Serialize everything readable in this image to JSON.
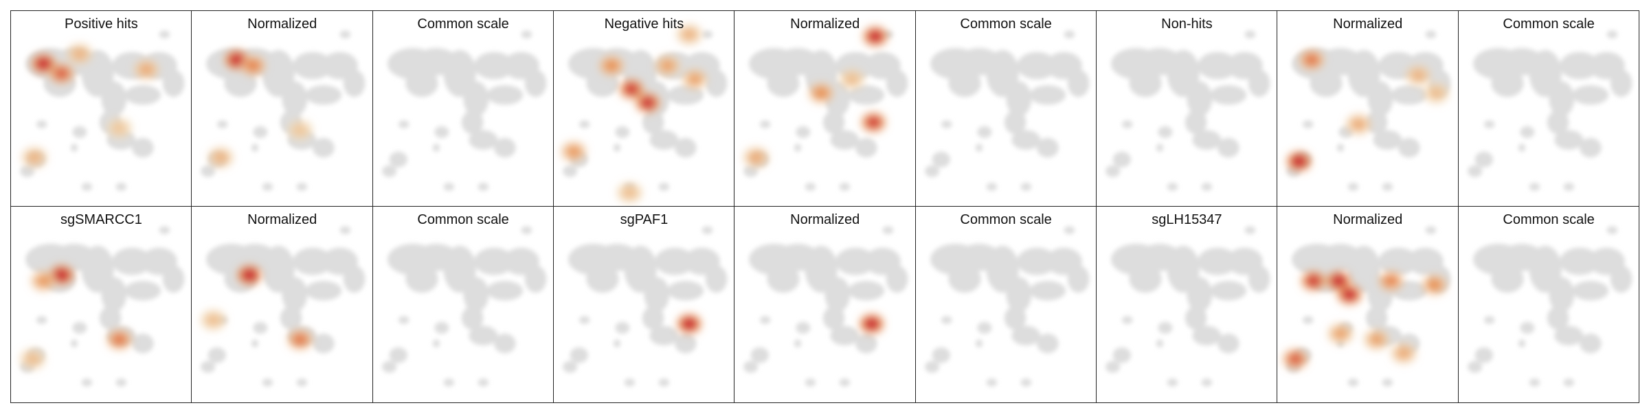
{
  "chart_data": {
    "type": "heatmap",
    "description_note": "",
    "colors": {
      "background_cells": "#dddddd",
      "heat_low": "#f2e6c6",
      "heat_mid": "#e88b4a",
      "heat_high": "#c8102e"
    },
    "panels": [
      {
        "title": "Positive hits",
        "hotspots": [
          {
            "x": 0.18,
            "y": 0.27,
            "intensity": 0.95
          },
          {
            "x": 0.28,
            "y": 0.32,
            "intensity": 0.7
          },
          {
            "x": 0.38,
            "y": 0.22,
            "intensity": 0.3
          },
          {
            "x": 0.75,
            "y": 0.3,
            "intensity": 0.35
          },
          {
            "x": 0.13,
            "y": 0.75,
            "intensity": 0.3
          },
          {
            "x": 0.6,
            "y": 0.6,
            "intensity": 0.2
          }
        ]
      },
      {
        "title": "Normalized",
        "hotspots": [
          {
            "x": 0.25,
            "y": 0.25,
            "intensity": 0.95
          },
          {
            "x": 0.34,
            "y": 0.28,
            "intensity": 0.55
          },
          {
            "x": 0.16,
            "y": 0.75,
            "intensity": 0.3
          },
          {
            "x": 0.6,
            "y": 0.61,
            "intensity": 0.2
          }
        ]
      },
      {
        "title": "Common scale",
        "hotspots": []
      },
      {
        "title": "Negative hits",
        "hotspots": [
          {
            "x": 0.32,
            "y": 0.28,
            "intensity": 0.5
          },
          {
            "x": 0.43,
            "y": 0.4,
            "intensity": 0.85
          },
          {
            "x": 0.52,
            "y": 0.47,
            "intensity": 0.9
          },
          {
            "x": 0.63,
            "y": 0.28,
            "intensity": 0.4
          },
          {
            "x": 0.78,
            "y": 0.35,
            "intensity": 0.4
          },
          {
            "x": 0.11,
            "y": 0.72,
            "intensity": 0.45
          },
          {
            "x": 0.75,
            "y": 0.12,
            "intensity": 0.3
          },
          {
            "x": 0.42,
            "y": 0.93,
            "intensity": 0.25
          }
        ]
      },
      {
        "title": "Normalized",
        "hotspots": [
          {
            "x": 0.78,
            "y": 0.13,
            "intensity": 0.95
          },
          {
            "x": 0.48,
            "y": 0.42,
            "intensity": 0.5
          },
          {
            "x": 0.77,
            "y": 0.57,
            "intensity": 0.85
          },
          {
            "x": 0.12,
            "y": 0.75,
            "intensity": 0.35
          },
          {
            "x": 0.65,
            "y": 0.35,
            "intensity": 0.25
          }
        ]
      },
      {
        "title": "Common scale",
        "hotspots": []
      },
      {
        "title": "Non-hits",
        "hotspots": []
      },
      {
        "title": "Normalized",
        "hotspots": [
          {
            "x": 0.12,
            "y": 0.77,
            "intensity": 0.98
          },
          {
            "x": 0.19,
            "y": 0.25,
            "intensity": 0.6
          },
          {
            "x": 0.45,
            "y": 0.58,
            "intensity": 0.35
          },
          {
            "x": 0.78,
            "y": 0.33,
            "intensity": 0.3
          },
          {
            "x": 0.88,
            "y": 0.42,
            "intensity": 0.25
          }
        ]
      },
      {
        "title": "Common scale",
        "hotspots": []
      },
      {
        "title": "sgSMARCC1",
        "hotspots": [
          {
            "x": 0.28,
            "y": 0.35,
            "intensity": 0.98
          },
          {
            "x": 0.18,
            "y": 0.38,
            "intensity": 0.45
          },
          {
            "x": 0.6,
            "y": 0.68,
            "intensity": 0.6
          },
          {
            "x": 0.12,
            "y": 0.78,
            "intensity": 0.25
          }
        ]
      },
      {
        "title": "Normalized",
        "hotspots": [
          {
            "x": 0.32,
            "y": 0.35,
            "intensity": 0.98
          },
          {
            "x": 0.6,
            "y": 0.68,
            "intensity": 0.6
          },
          {
            "x": 0.12,
            "y": 0.58,
            "intensity": 0.25
          }
        ]
      },
      {
        "title": "Common scale",
        "hotspots": []
      },
      {
        "title": "sgPAF1",
        "hotspots": [
          {
            "x": 0.75,
            "y": 0.6,
            "intensity": 0.98
          }
        ]
      },
      {
        "title": "Normalized",
        "hotspots": [
          {
            "x": 0.76,
            "y": 0.6,
            "intensity": 0.98
          }
        ]
      },
      {
        "title": "Common scale",
        "hotspots": []
      },
      {
        "title": "sgLH15347",
        "hotspots": []
      },
      {
        "title": "Normalized",
        "hotspots": [
          {
            "x": 0.2,
            "y": 0.38,
            "intensity": 0.85
          },
          {
            "x": 0.34,
            "y": 0.38,
            "intensity": 0.95
          },
          {
            "x": 0.4,
            "y": 0.45,
            "intensity": 0.95
          },
          {
            "x": 0.63,
            "y": 0.38,
            "intensity": 0.55
          },
          {
            "x": 0.87,
            "y": 0.4,
            "intensity": 0.5
          },
          {
            "x": 0.1,
            "y": 0.78,
            "intensity": 0.7
          },
          {
            "x": 0.35,
            "y": 0.65,
            "intensity": 0.4
          },
          {
            "x": 0.55,
            "y": 0.68,
            "intensity": 0.4
          },
          {
            "x": 0.7,
            "y": 0.75,
            "intensity": 0.35
          }
        ]
      },
      {
        "title": "Common scale",
        "hotspots": []
      }
    ]
  }
}
